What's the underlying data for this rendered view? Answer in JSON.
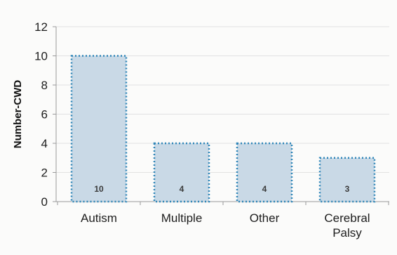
{
  "chart_data": {
    "type": "bar",
    "title": "",
    "xlabel": "",
    "ylabel": "Number-CWD",
    "categories": [
      "Autism",
      "Multiple",
      "Other",
      "Cerebral Palsy"
    ],
    "category_lines": [
      [
        "Autism"
      ],
      [
        "Multiple"
      ],
      [
        "Other"
      ],
      [
        "Cerebral",
        "Palsy"
      ]
    ],
    "values": [
      10,
      4,
      4,
      3
    ],
    "data_labels": [
      "10",
      "4",
      "4",
      "3"
    ],
    "ylim": [
      0,
      12
    ],
    "yticks": [
      0,
      2,
      4,
      6,
      8,
      10,
      12
    ],
    "ytick_labels": [
      "0",
      "2",
      "4",
      "6",
      "8",
      "10",
      "12"
    ],
    "grid": true,
    "legend": "none",
    "colors": {
      "bar_fill": "#c9d9e6",
      "bar_border": "#2f86b8",
      "grid": "#e2e2e2",
      "axis": "#9a9a9a"
    }
  }
}
